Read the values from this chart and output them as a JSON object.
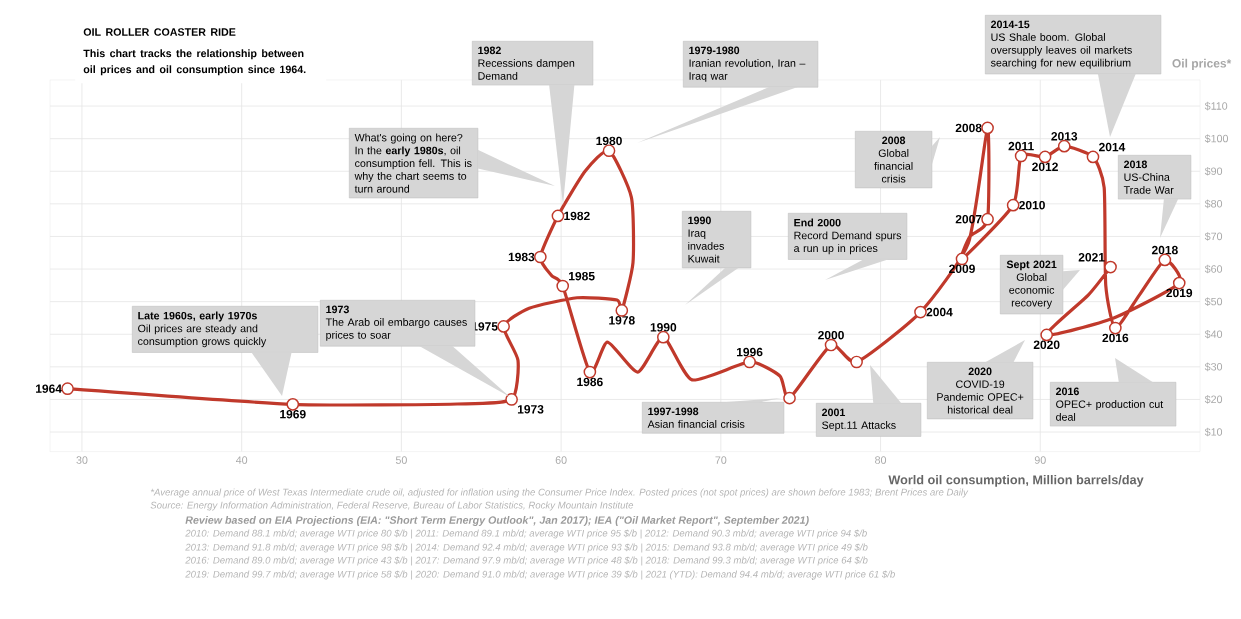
{
  "chart_data": {
    "type": "line",
    "title": "OIL ROLLER COASTER RIDE",
    "subtitle": "This chart tracks the relationship between oil prices and oil consumption since 1964.",
    "xlabel": "World oil consumption, Million barrels/day",
    "ylabel": "Oil prices*",
    "xlim": [
      28,
      100
    ],
    "ylim": [
      4,
      118
    ],
    "xticks": [
      30,
      40,
      50,
      60,
      70,
      80,
      90
    ],
    "yticks": [
      {
        "value": 10,
        "label": "$10"
      },
      {
        "value": 20,
        "label": "$20"
      },
      {
        "value": 30,
        "label": "$30"
      },
      {
        "value": 40,
        "label": "$40"
      },
      {
        "value": 50,
        "label": "$50"
      },
      {
        "value": 60,
        "label": "$60"
      },
      {
        "value": 70,
        "label": "$70"
      },
      {
        "value": 80,
        "label": "$80"
      },
      {
        "value": 90,
        "label": "$90"
      },
      {
        "value": 100,
        "label": "$100"
      },
      {
        "value": 110,
        "label": "$110"
      }
    ],
    "grid": true,
    "series": [
      {
        "color": "#c0392b",
        "x": [
          29.1,
          43.2,
          53.5,
          56.9,
          57.3,
          56.4,
          58,
          61,
          63.5,
          63.8,
          64.5,
          64.4,
          63.0,
          61.5,
          59.8,
          58.7,
          59.4,
          60.1,
          61.8,
          62.9,
          64.8,
          66.4,
          68.2,
          71.8,
          73.7,
          74.3,
          76.9,
          78.5,
          82.5,
          85.5,
          86.7,
          86.7,
          85.6,
          85.1,
          88.3,
          88.8,
          90.3,
          91.5,
          93.3,
          94.0,
          94.1,
          94.7,
          96.2,
          97.8,
          98.7,
          94.6,
          90.4,
          93.0,
          94.4
        ],
        "values": [
          23.3,
          18.5,
          18.6,
          20.0,
          32,
          42.4,
          48,
          51.2,
          50.5,
          47.3,
          62,
          82,
          96.3,
          90,
          76.3,
          63.7,
          58,
          54.8,
          28.4,
          37.6,
          28.4,
          39.1,
          26.0,
          31.5,
          27.2,
          20.4,
          36.7,
          31.5,
          46.8,
          68,
          103.3,
          75.3,
          70,
          63.1,
          79.6,
          94.7,
          94.4,
          97.7,
          94.4,
          85,
          55,
          41.9,
          52,
          62.8,
          55.7,
          45,
          39.8,
          52,
          60.6
        ]
      },
      {
        "type": "scatter",
        "marker": "circle",
        "color": "#c0392b",
        "x": [
          29.1,
          43.2,
          56.9,
          56.4,
          63.8,
          63.0,
          59.8,
          58.7,
          60.1,
          61.8,
          66.4,
          71.8,
          74.3,
          76.9,
          78.5,
          82.5,
          86.7,
          86.7,
          85.1,
          88.3,
          88.8,
          90.3,
          91.5,
          93.3,
          94.7,
          97.8,
          98.7,
          90.4,
          94.4
        ],
        "values": [
          23.3,
          18.5,
          20.0,
          42.4,
          47.3,
          96.3,
          76.3,
          63.7,
          54.8,
          28.4,
          39.1,
          31.5,
          20.4,
          36.7,
          31.5,
          46.8,
          75.3,
          103.3,
          63.1,
          79.6,
          94.7,
          94.4,
          97.7,
          94.4,
          41.9,
          62.8,
          55.7,
          39.8,
          60.6
        ]
      }
    ],
    "annotations": [
      "1982",
      "Recessions dampen Demand",
      "What's going on here? In the **early 1980s**, oil consumption fell. This is why the chart seems to turn around",
      "1979-1980",
      "Iranian revolution, Iran – Iraq war",
      "1990",
      "Iraq invades Kuwait",
      "End 2000",
      "Record Demand spurs a run up in prices",
      "2008",
      "Global financial crisis",
      "2014-15",
      "US Shale boom. Global oversupply leaves oil markets searching for new equilibrium",
      "2018",
      "US-China Trade War",
      "Sept 2021",
      "Global economic recovery",
      "Late 1960s, early 1970s",
      "Oil prices are steady  and consumption grows quickly",
      "1973",
      "The Arab oil embargo causes prices to soar",
      "1997-1998",
      "Asian financial crisis",
      "2001",
      "Sept.11 Attacks",
      "2020",
      "COVID-19 Pandemic OPEC+ historical deal",
      "2016",
      "OPEC+ production cut deal",
      "*Average annual price of West Texas Intermediate crude oil, adjusted for inflation using the Consumer Price Index. Posted prices (not spot prices) are shown before 1983; Brent Prices are Daily",
      "Source: Energy Information Administration, Federal Reserve, Bureau of Labor Statistics, Rocky Mountain Institute",
      "Review based on EIA Projections (EIA: \"Short Term Energy Outlook\", Jan 2017); IEA (\"Oil Market Report\", September 2021)",
      "2010: Demand 88.1 mb/d; average WTI price 80 $/b  |  2011: Demand 89.1 mb/d; average WTI price 95 $/b  |  2012: Demand 90.3 mb/d; average WTI price 94 $/b",
      "2013: Demand 91.8 mb/d; average WTI price 98 $/b  |  2014: Demand 92.4 mb/d; average WTI price 93 $/b  |  2015: Demand 93.8 mb/d; average WTI price 49 $/b",
      "2016: Demand 89.0 mb/d; average WTI price 43 $/b  |  2017: Demand 97.9 mb/d; average WTI price 48 $/b  |  2018: Demand 99.3 mb/d; average WTI price 64 $/b",
      "2019: Demand 99.7 mb/d; average WTI price 58 $/b  |  2020: Demand 91.0 mb/d; average WTI price 39 $/b  |  2021 (YTD): Demand 94.4 mb/d; average WTI price 61 $/b",
      {
        "text": "1964",
        "x": 29.1,
        "y": 23.3
      },
      {
        "text": "1969",
        "x": 43.2,
        "y": 18.5
      },
      {
        "text": "1973",
        "x": 56.9,
        "y": 20.0
      },
      {
        "text": "1975",
        "x": 56.4,
        "y": 42.4
      },
      {
        "text": "1978",
        "x": 63.8,
        "y": 47.3
      },
      {
        "text": "1980",
        "x": 63.0,
        "y": 96.3
      },
      {
        "text": "1982",
        "x": 59.8,
        "y": 76.3
      },
      {
        "text": "1983",
        "x": 58.7,
        "y": 63.7
      },
      {
        "text": "1985",
        "x": 60.1,
        "y": 54.8
      },
      {
        "text": "1986",
        "x": 61.8,
        "y": 28.4
      },
      {
        "text": "1990",
        "x": 66.4,
        "y": 39.1
      },
      {
        "text": "1996",
        "x": 71.8,
        "y": 31.5
      },
      {
        "text": "2000",
        "x": 76.9,
        "y": 36.7
      },
      {
        "text": "2004",
        "x": 82.5,
        "y": 46.8
      },
      {
        "text": "2007",
        "x": 86.7,
        "y": 75.3
      },
      {
        "text": "2008",
        "x": 86.7,
        "y": 103.3
      },
      {
        "text": "2009",
        "x": 85.1,
        "y": 63.1
      },
      {
        "text": "2010",
        "x": 88.3,
        "y": 79.6
      },
      {
        "text": "2011",
        "x": 88.8,
        "y": 94.7
      },
      {
        "text": "2012",
        "x": 90.3,
        "y": 94.4
      },
      {
        "text": "2013",
        "x": 91.5,
        "y": 97.7
      },
      {
        "text": "2014",
        "x": 93.3,
        "y": 94.4
      },
      {
        "text": "2016",
        "x": 94.7,
        "y": 41.9
      },
      {
        "text": "2018",
        "x": 97.8,
        "y": 62.8
      },
      {
        "text": "2019",
        "x": 98.7,
        "y": 55.7
      },
      {
        "text": "2020",
        "x": 90.4,
        "y": 39.8
      },
      {
        "text": "2021",
        "x": 94.4,
        "y": 60.6
      }
    ]
  }
}
